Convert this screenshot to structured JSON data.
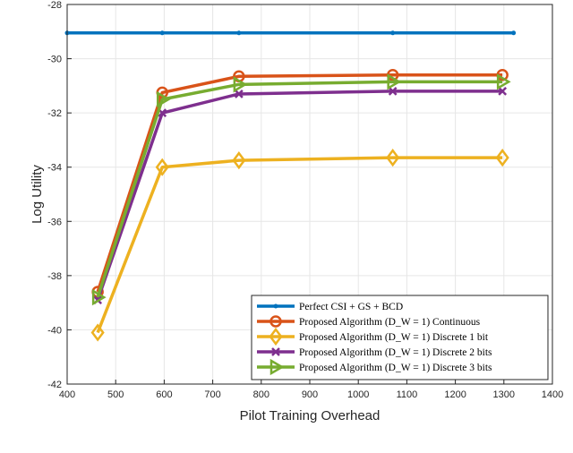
{
  "chart_data": {
    "type": "line",
    "xlabel": "Pilot Training Overhead",
    "ylabel": "Log Utility",
    "xlim": [
      400,
      1400
    ],
    "ylim": [
      -42,
      -28
    ],
    "xticks": [
      400,
      500,
      600,
      700,
      800,
      900,
      1000,
      1100,
      1200,
      1300,
      1400
    ],
    "yticks": [
      -42,
      -40,
      -38,
      -36,
      -34,
      -32,
      -30,
      -28
    ],
    "grid": true,
    "legend_position": "bottom-right",
    "series": [
      {
        "name": "Perfect CSI + GS + BCD",
        "color": "#0072BD",
        "marker": "dot",
        "x": [
          400,
          596,
          754,
          1071,
          1320
        ],
        "y": [
          -29.05,
          -29.05,
          -29.05,
          -29.05,
          -29.05
        ]
      },
      {
        "name": "Proposed Algorithm (D_W = 1) Continuous",
        "color": "#D95319",
        "marker": "circle",
        "x": [
          463,
          596,
          754,
          1071,
          1297
        ],
        "y": [
          -38.6,
          -31.25,
          -30.65,
          -30.6,
          -30.6
        ]
      },
      {
        "name": "Proposed Algorithm (D_W = 1) Discrete 1 bit",
        "color": "#EDB120",
        "marker": "diamond",
        "x": [
          463,
          596,
          754,
          1071,
          1297
        ],
        "y": [
          -40.1,
          -34.0,
          -33.75,
          -33.65,
          -33.65
        ]
      },
      {
        "name": "Proposed Algorithm (D_W = 1) Discrete 2 bits",
        "color": "#7E2F8E",
        "marker": "x",
        "x": [
          463,
          596,
          754,
          1071,
          1297
        ],
        "y": [
          -38.9,
          -32.0,
          -31.3,
          -31.2,
          -31.2
        ]
      },
      {
        "name": "Proposed Algorithm (D_W = 1) Discrete 3 bits",
        "color": "#77AC30",
        "marker": "triangle-right",
        "x": [
          463,
          596,
          754,
          1071,
          1297
        ],
        "y": [
          -38.8,
          -31.5,
          -30.95,
          -30.85,
          -30.85
        ]
      }
    ]
  }
}
